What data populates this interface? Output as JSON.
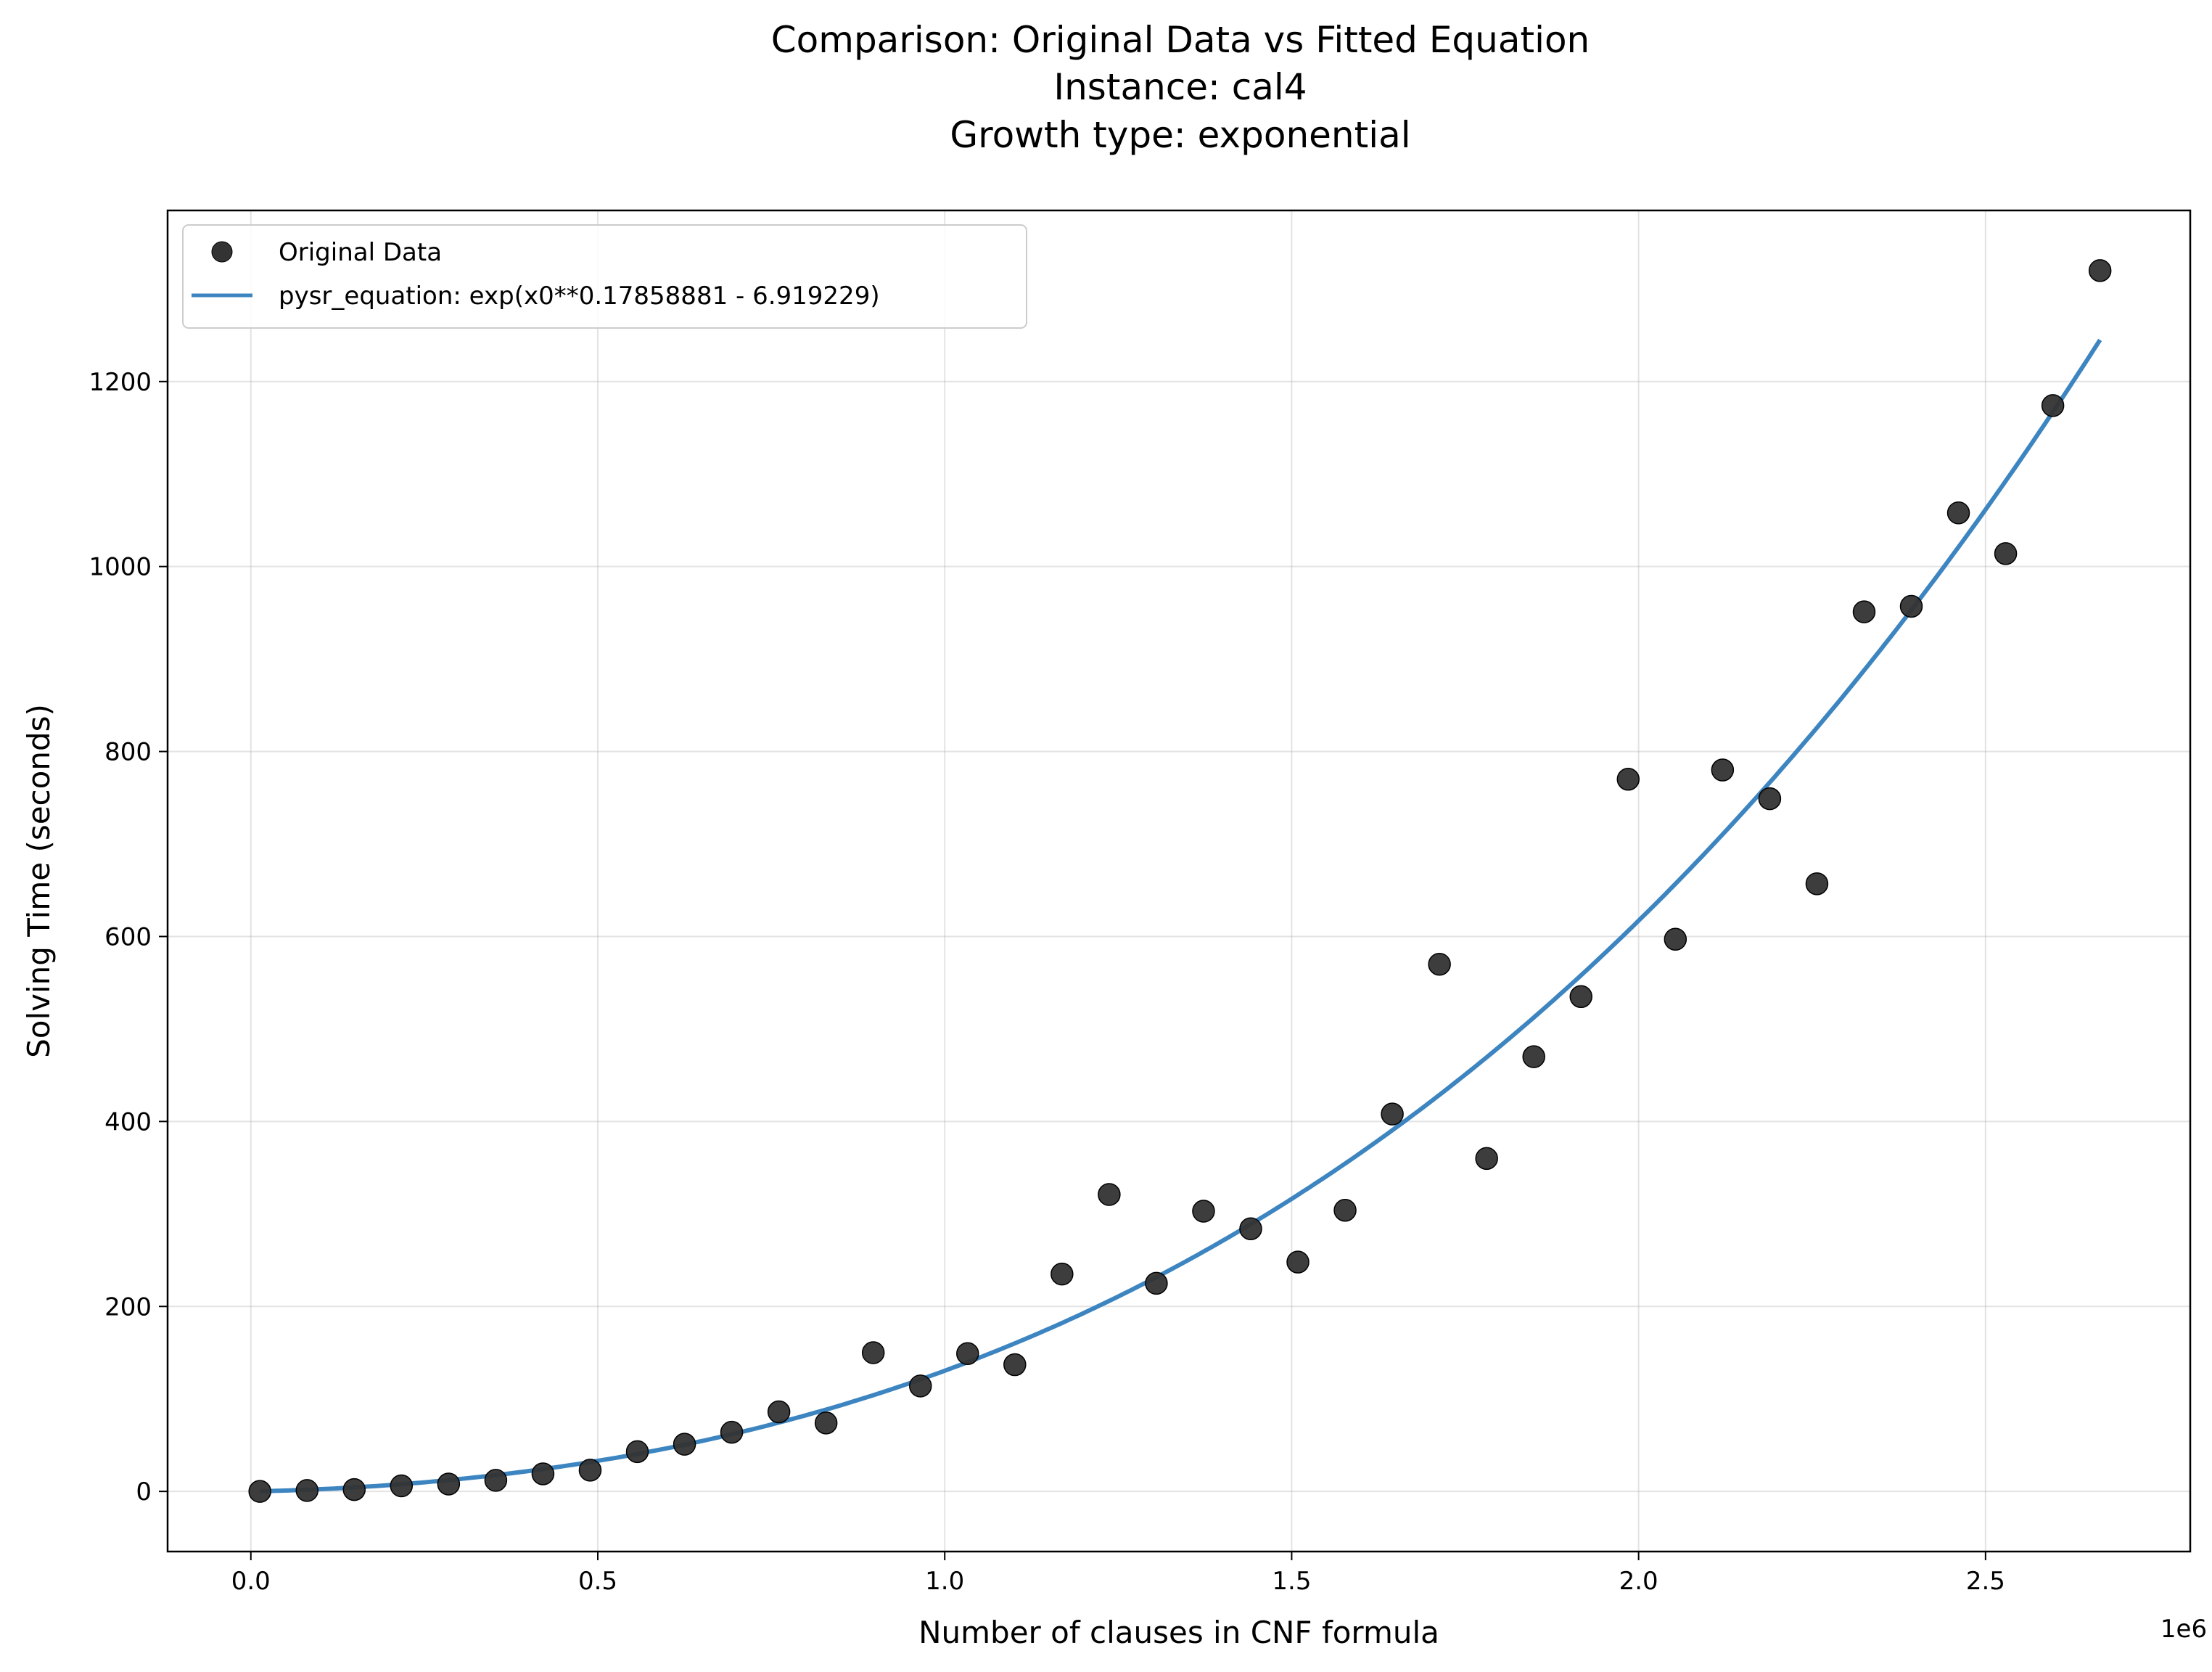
{
  "chart_data": {
    "type": "scatter",
    "title_lines": [
      "Comparison: Original Data vs Fitted Equation",
      "Instance: cal4",
      "Growth type: exponential"
    ],
    "xlabel": "Number of clauses in CNF formula",
    "ylabel": "Solving Time (seconds)",
    "x_offset_label": "1e6",
    "xlim": [
      -0.12,
      2.795
    ],
    "ylim": [
      -65,
      1385
    ],
    "x_ticks": [
      0.0,
      0.5,
      1.0,
      1.5,
      2.0,
      2.5
    ],
    "x_tick_labels": [
      "0.0",
      "0.5",
      "1.0",
      "1.5",
      "2.0",
      "2.5"
    ],
    "y_ticks": [
      0,
      200,
      400,
      600,
      800,
      1000,
      1200
    ],
    "y_tick_labels": [
      "0",
      "200",
      "400",
      "600",
      "800",
      "1000",
      "1200"
    ],
    "grid": true,
    "legend_position": "top-left",
    "series": [
      {
        "name": "Original Data",
        "kind": "scatter",
        "color": "#333333",
        "points": [
          [
            0.013,
            0
          ],
          [
            0.081,
            1
          ],
          [
            0.149,
            2
          ],
          [
            0.217,
            6
          ],
          [
            0.285,
            8
          ],
          [
            0.353,
            12
          ],
          [
            0.421,
            19
          ],
          [
            0.489,
            23
          ],
          [
            0.557,
            43
          ],
          [
            0.625,
            51
          ],
          [
            0.693,
            64
          ],
          [
            0.761,
            86
          ],
          [
            0.829,
            74
          ],
          [
            0.897,
            150
          ],
          [
            0.965,
            114
          ],
          [
            1.033,
            149
          ],
          [
            1.101,
            137
          ],
          [
            1.169,
            235
          ],
          [
            1.237,
            321
          ],
          [
            1.305,
            225
          ],
          [
            1.373,
            303
          ],
          [
            1.441,
            284
          ],
          [
            1.509,
            248
          ],
          [
            1.577,
            304
          ],
          [
            1.645,
            408
          ],
          [
            1.713,
            570
          ],
          [
            1.781,
            360
          ],
          [
            1.849,
            470
          ],
          [
            1.917,
            535
          ],
          [
            1.985,
            770
          ],
          [
            2.053,
            597
          ],
          [
            2.121,
            780
          ],
          [
            2.189,
            749
          ],
          [
            2.257,
            657
          ],
          [
            2.325,
            951
          ],
          [
            2.393,
            957
          ],
          [
            2.461,
            1058
          ],
          [
            2.529,
            1014
          ],
          [
            2.597,
            1174
          ],
          [
            2.665,
            1320
          ]
        ]
      },
      {
        "name": "pysr_equation: exp(x0**0.17858881 - 6.919229)",
        "kind": "line",
        "color": "#3d85c0",
        "function": "exp(x0**0.17858881 - 6.919229)",
        "x_range": [
          0.013,
          2.665
        ]
      }
    ]
  }
}
